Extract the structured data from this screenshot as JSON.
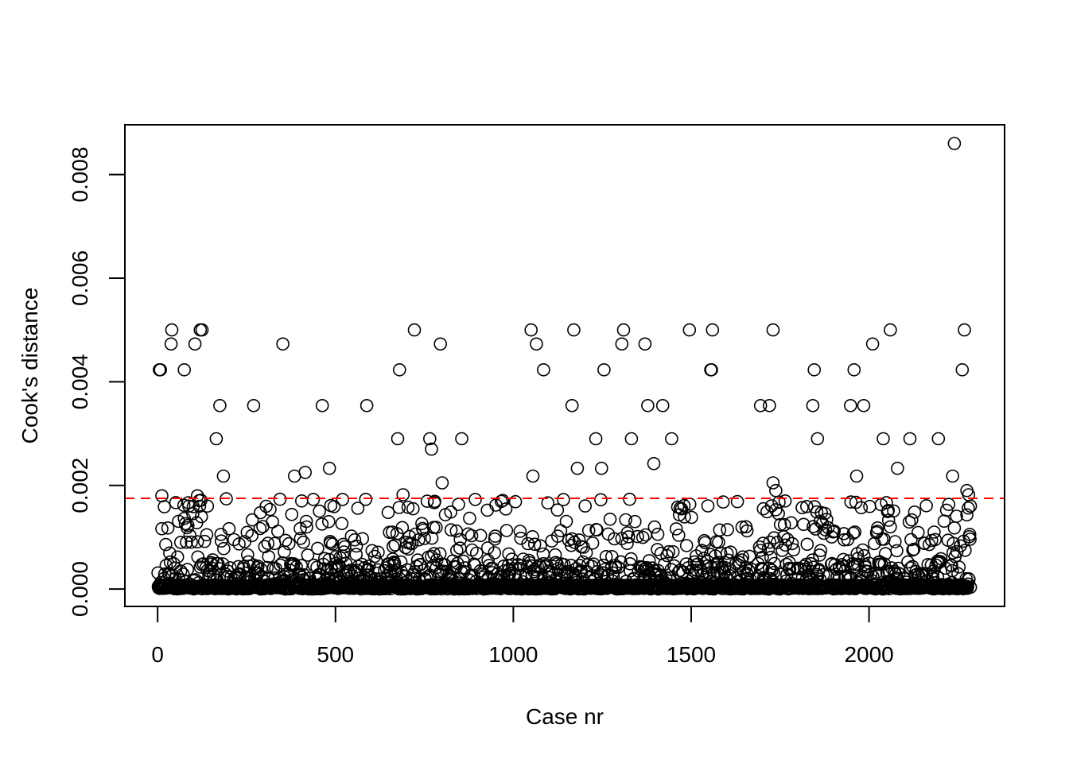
{
  "chart_data": {
    "type": "scatter",
    "title": "",
    "xlabel": "Case nr",
    "ylabel": "Cook's distance",
    "xlim": [
      -92,
      2381
    ],
    "ylim": [
      -0.000336,
      0.00896
    ],
    "x_ticks": [
      0,
      500,
      1000,
      1500,
      2000
    ],
    "x_tick_labels": [
      "0",
      "500",
      "1000",
      "1500",
      "2000"
    ],
    "y_ticks": [
      0,
      0.002,
      0.004,
      0.006,
      0.008
    ],
    "y_tick_labels": [
      "0.000",
      "0.002",
      "0.004",
      "0.006",
      "0.008"
    ],
    "threshold": {
      "value": 0.00175,
      "color": "#ff0000",
      "style": "dashed"
    },
    "marker": "open-circle",
    "n_cases": 2285,
    "grid": false,
    "legend": "none",
    "series": [
      {
        "x": [
          5,
          8,
          12,
          38,
          40,
          65,
          75,
          88,
          105,
          112,
          120,
          125,
          140,
          165,
          175,
          185,
          270,
          352,
          385,
          405,
          415,
          463,
          483,
          588,
          675,
          680,
          690,
          722,
          765,
          770,
          795,
          800,
          855,
          1050,
          1055,
          1065,
          1085,
          1165,
          1170,
          1180,
          1232,
          1248,
          1255,
          1305,
          1310,
          1332,
          1370,
          1378,
          1395,
          1420,
          1445,
          1495,
          1555,
          1557,
          1560,
          1590,
          1730,
          1738,
          1695,
          1720,
          1730,
          1842,
          1846,
          1855,
          1948,
          1958,
          1965,
          1985,
          2010,
          2040,
          2060,
          2080,
          2115,
          2195,
          2235,
          2240,
          2262,
          2268,
          2275,
          2280,
          2285
        ],
        "y": [
          0.00423,
          0.00423,
          0.0018,
          0.00473,
          0.005,
          0.0009,
          0.00423,
          0.0016,
          0.00473,
          0.0018,
          0.005,
          0.005,
          0.0016,
          0.0029,
          0.00354,
          0.00218,
          0.00354,
          0.00473,
          0.00218,
          0.0017,
          0.00225,
          0.00354,
          0.00233,
          0.00354,
          0.0029,
          0.00423,
          0.00182,
          0.005,
          0.0029,
          0.0027,
          0.00473,
          0.00205,
          0.0029,
          0.005,
          0.00218,
          0.00473,
          0.00423,
          0.00354,
          0.005,
          0.00233,
          0.0029,
          0.00233,
          0.00423,
          0.00473,
          0.005,
          0.0029,
          0.00473,
          0.00354,
          0.00242,
          0.00354,
          0.0029,
          0.005,
          0.00423,
          0.00423,
          0.005,
          0.00168,
          0.005,
          0.0019,
          0.00354,
          0.00354,
          0.00205,
          0.00354,
          0.00423,
          0.0029,
          0.00354,
          0.00423,
          0.00218,
          0.00354,
          0.00473,
          0.0029,
          0.005,
          0.00233,
          0.0029,
          0.0029,
          0.00218,
          0.0086,
          0.00423,
          0.005,
          0.0019,
          0.00182,
          0.0016
        ]
      }
    ]
  }
}
